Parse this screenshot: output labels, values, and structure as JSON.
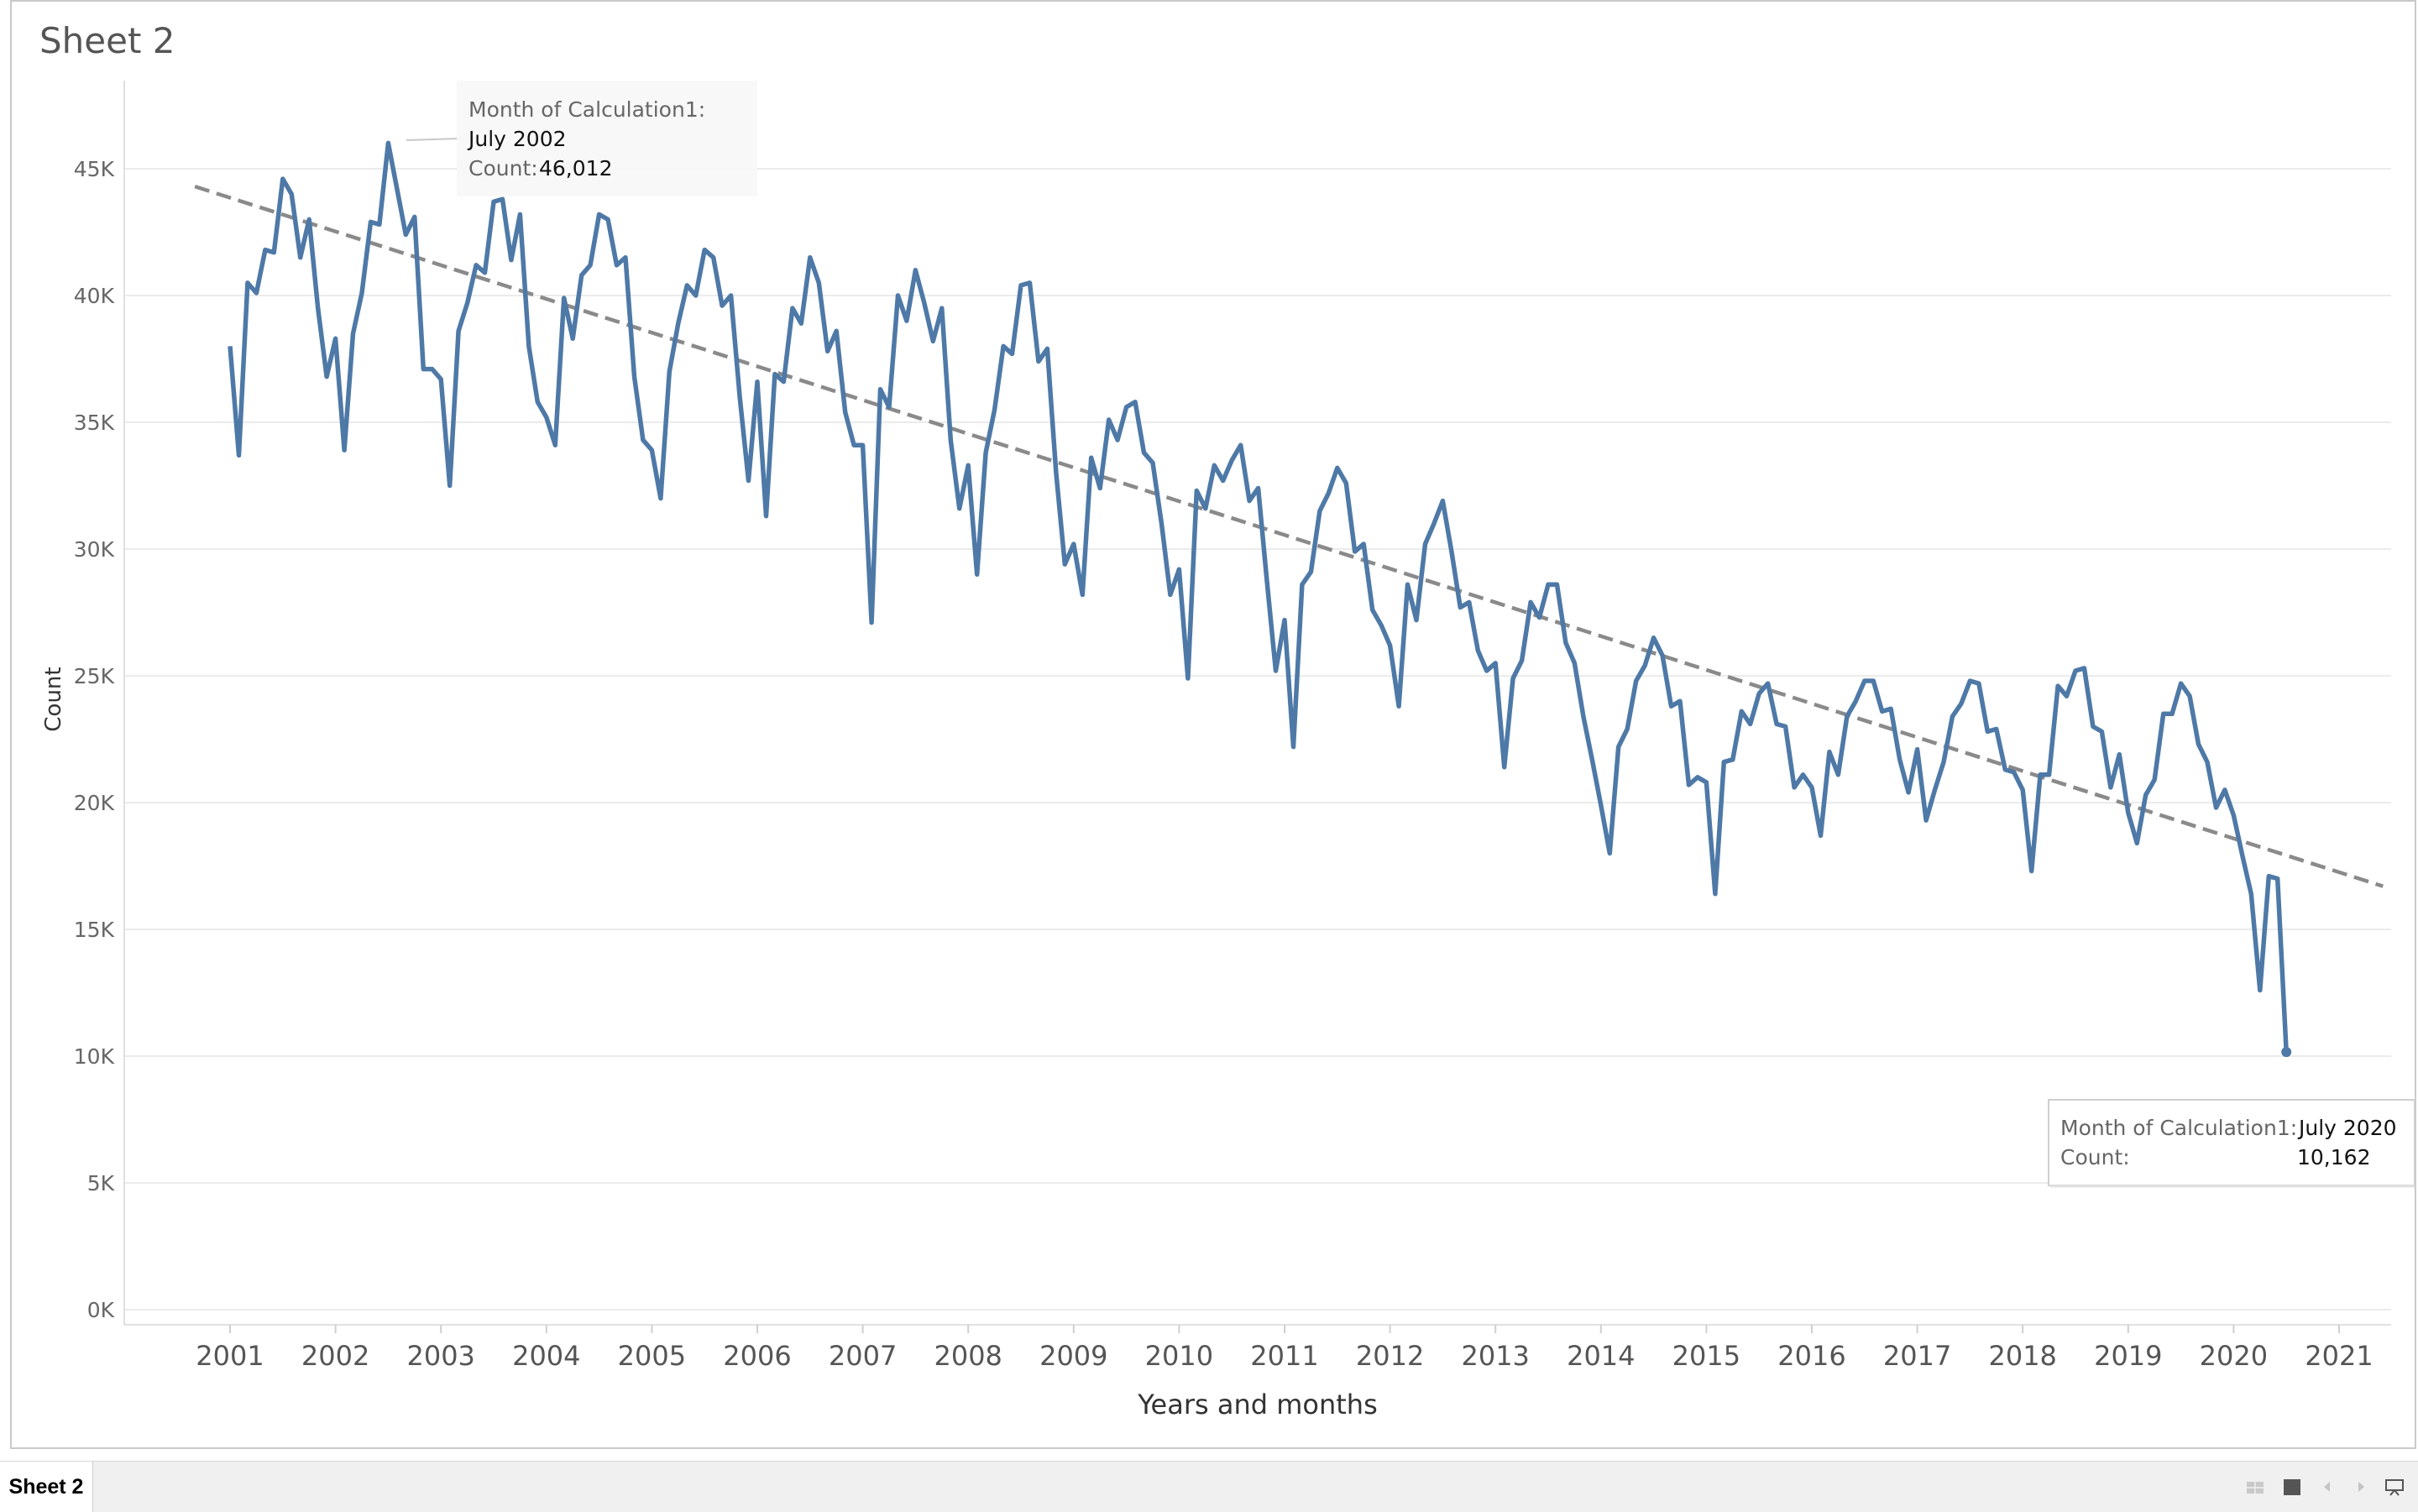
{
  "sheet": {
    "title": "Sheet 2",
    "tab_label": "Sheet 2"
  },
  "colors": {
    "line": "#4e79a7",
    "trend": "#8a8a8a",
    "grid": "#ebebeb"
  },
  "chart_data": {
    "type": "line",
    "title": "",
    "xlabel": "Years and months",
    "ylabel": "Count",
    "ylim": [
      0,
      48000
    ],
    "x_ticks": [
      "2001",
      "2002",
      "2003",
      "2004",
      "2005",
      "2006",
      "2007",
      "2008",
      "2009",
      "2010",
      "2011",
      "2012",
      "2013",
      "2014",
      "2015",
      "2016",
      "2017",
      "2018",
      "2019",
      "2020",
      "2021"
    ],
    "y_ticks": [
      {
        "value": 0,
        "label": "0K"
      },
      {
        "value": 5000,
        "label": "5K"
      },
      {
        "value": 10000,
        "label": "10K"
      },
      {
        "value": 15000,
        "label": "15K"
      },
      {
        "value": 20000,
        "label": "20K"
      },
      {
        "value": 25000,
        "label": "25K"
      },
      {
        "value": 30000,
        "label": "30K"
      },
      {
        "value": 35000,
        "label": "35K"
      },
      {
        "value": 40000,
        "label": "40K"
      },
      {
        "value": 45000,
        "label": "45K"
      }
    ],
    "grid": true,
    "series": [
      {
        "start": "2001-01",
        "values": [
          38000,
          33700,
          40500,
          40100,
          41800,
          41700,
          44600,
          44000,
          41500,
          43000,
          39500,
          36800,
          38300,
          33900,
          38500,
          40100,
          42900,
          42800,
          46012,
          44200,
          42400,
          43100,
          37100,
          37100,
          36700,
          32500,
          38600,
          39700,
          41200,
          40900,
          43700,
          43800,
          41400,
          43200,
          38000,
          35800,
          35200,
          34100,
          39900,
          38300,
          40800,
          41200,
          43200,
          43000,
          41200,
          41500,
          36800,
          34300,
          33900,
          32000,
          37000,
          38900,
          40400,
          40000,
          41800,
          41500,
          39600,
          40000,
          36000,
          32700,
          36600,
          31300,
          36900,
          36600,
          39500,
          38900,
          41500,
          40500,
          37800,
          38600,
          35400,
          34100,
          34100,
          27100,
          36300,
          35600,
          40000,
          39000,
          41000,
          39700,
          38200,
          39500,
          34300,
          31600,
          33300,
          29000,
          33800,
          35500,
          38000,
          37700,
          40400,
          40500,
          37400,
          37900,
          33000,
          29400,
          30200,
          28200,
          33600,
          32400,
          35100,
          34300,
          35600,
          35800,
          33800,
          33400,
          31000,
          28200,
          29200,
          24900,
          32300,
          31600,
          33300,
          32700,
          33500,
          34100,
          31900,
          32400,
          28700,
          25200,
          27200,
          22200,
          28600,
          29100,
          31500,
          32200,
          33200,
          32600,
          29900,
          30200,
          27600,
          27000,
          26200,
          23800,
          28600,
          27200,
          30200,
          31000,
          31900,
          29900,
          27700,
          27900,
          26000,
          25200,
          25500,
          21400,
          24900,
          25600,
          27900,
          27300,
          28600,
          28600,
          26300,
          25500,
          23400,
          21700,
          19900,
          18000,
          22200,
          22900,
          24800,
          25400,
          26500,
          25800,
          23800,
          24000,
          20700,
          21000,
          20800,
          16400,
          21600,
          21700,
          23600,
          23100,
          24300,
          24700,
          23100,
          23000,
          20600,
          21100,
          20600,
          18700,
          22000,
          21100,
          23400,
          24000,
          24800,
          24800,
          23600,
          23700,
          21700,
          20400,
          22100,
          19300,
          20500,
          21600,
          23400,
          23900,
          24800,
          24700,
          22800,
          22900,
          21300,
          21200,
          20500,
          17300,
          21100,
          21100,
          24600,
          24200,
          25200,
          25300,
          23000,
          22800,
          20600,
          21900,
          19600,
          18400,
          20300,
          20900,
          23500,
          23500,
          24700,
          24200,
          22300,
          21600,
          19800,
          20500,
          19500,
          17900,
          16400,
          12600,
          17100,
          17000,
          10162
        ]
      }
    ],
    "trend_line": {
      "start": "2000-09",
      "start_value": 44300,
      "end": "2021-06",
      "end_value": 16700,
      "style": "dashed"
    },
    "tooltips": [
      {
        "label": "Month of Calculation1:",
        "month": "July 2002",
        "count_label": "Count:",
        "count": "46,012"
      },
      {
        "label": "Month of Calculation1:",
        "month": "July 2020",
        "count_label": "Count:",
        "count": "10,162"
      }
    ]
  }
}
